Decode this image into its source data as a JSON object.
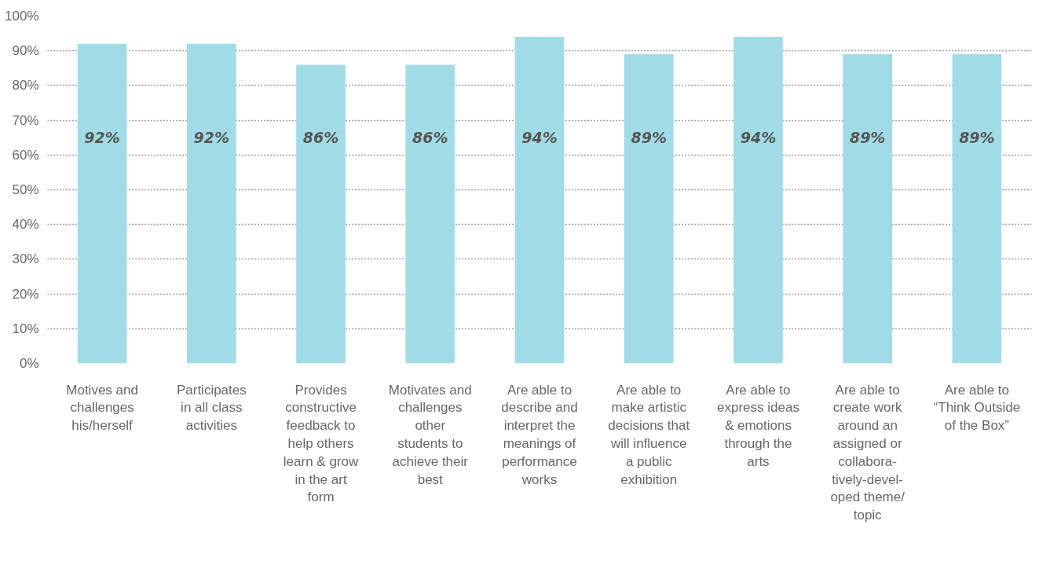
{
  "chart_data": {
    "type": "bar",
    "categories": [
      "Motives and\nchallenges\nhis/herself",
      "Participates\nin all class\nactivities",
      "Provides\nconstructive\nfeedback to\nhelp others\nlearn & grow\nin the art\nform",
      "Motivates and\nchallenges\nother\nstudents to\nachieve their\nbest",
      "Are able to\ndescribe and\ninterpret the\nmeanings of\nperformance\nworks",
      "Are able to\nmake artistic\ndecisions that\nwill influence\na public\nexhibition",
      "Are able to\nexpress ideas\n& emotions\nthrough the\narts",
      "Are able to\ncreate work\naround an\nassigned or\ncollabora-\ntively-devel-\noped theme/\ntopic",
      "Are able to\n“Think Outside\nof the Box”"
    ],
    "values": [
      92,
      92,
      86,
      86,
      94,
      89,
      94,
      89,
      89
    ],
    "value_labels": [
      "92%",
      "92%",
      "86%",
      "86%",
      "94%",
      "89%",
      "94%",
      "89%",
      "89%"
    ],
    "color": "#a1dce6",
    "ylim": [
      0,
      100
    ],
    "yticks": [
      {
        "value": 0,
        "label": "0%"
      },
      {
        "value": 10,
        "label": "10%"
      },
      {
        "value": 20,
        "label": "20%"
      },
      {
        "value": 30,
        "label": "30%"
      },
      {
        "value": 40,
        "label": "40%"
      },
      {
        "value": 50,
        "label": "50%"
      },
      {
        "value": 60,
        "label": "60%"
      },
      {
        "value": 70,
        "label": "70%"
      },
      {
        "value": 80,
        "label": "80%"
      },
      {
        "value": 90,
        "label": "90%"
      },
      {
        "value": 100,
        "label": "100%"
      }
    ],
    "grid": "y"
  }
}
